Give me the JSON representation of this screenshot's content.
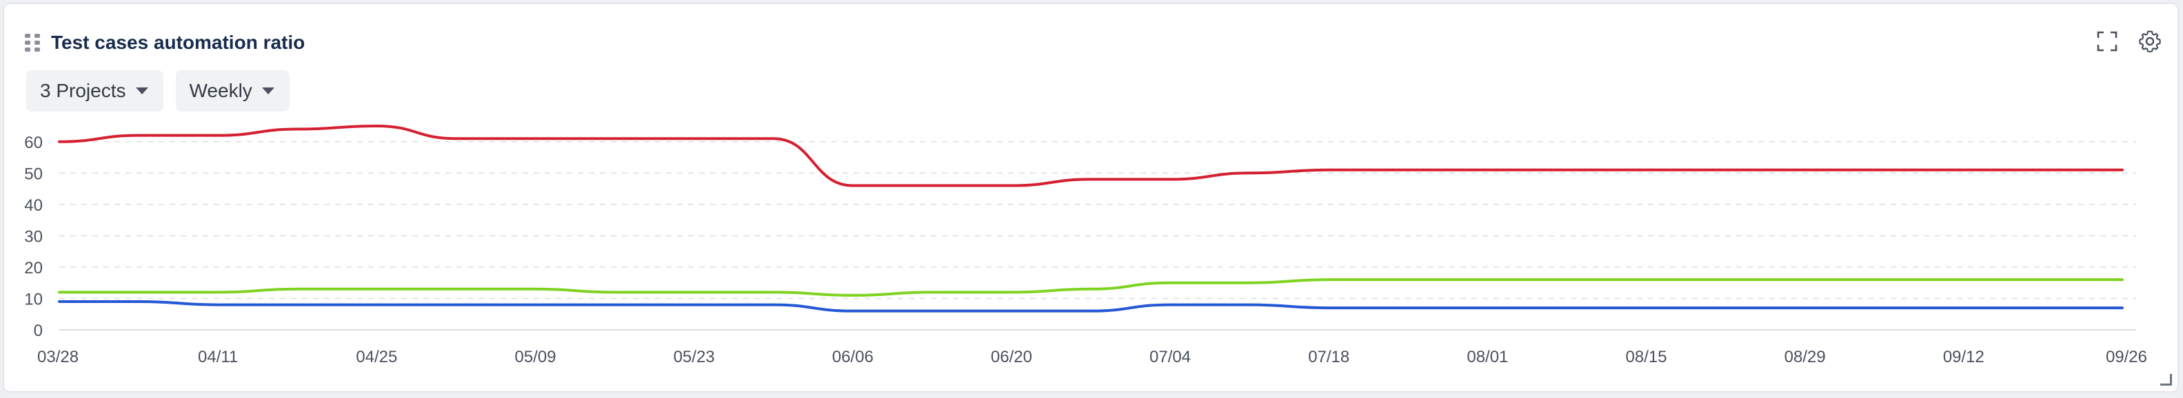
{
  "widget": {
    "title": "Test cases automation ratio",
    "icons": {
      "drag": "drag-handle-icon",
      "fullscreen": "fullscreen-icon",
      "settings": "gear-icon"
    }
  },
  "filters": {
    "projects_label": "3 Projects",
    "period_label": "Weekly"
  },
  "chart_data": {
    "type": "line",
    "title": "Test cases automation ratio",
    "xlabel": "",
    "ylabel": "",
    "ylim": [
      0,
      65
    ],
    "yticks": [
      0,
      10,
      20,
      30,
      40,
      50,
      60
    ],
    "grid": true,
    "x": [
      "03/28",
      "04/04",
      "04/11",
      "04/18",
      "04/25",
      "05/02",
      "05/09",
      "05/16",
      "05/23",
      "05/30",
      "06/06",
      "06/13",
      "06/20",
      "06/27",
      "07/04",
      "07/11",
      "07/18",
      "07/25",
      "08/01",
      "08/08",
      "08/15",
      "08/22",
      "08/29",
      "09/05",
      "09/12",
      "09/19",
      "09/26"
    ],
    "xtick_labels": [
      "03/28",
      "04/11",
      "04/25",
      "05/09",
      "05/23",
      "06/06",
      "06/20",
      "07/04",
      "07/18",
      "08/01",
      "08/15",
      "08/29",
      "09/12",
      "09/26"
    ],
    "series": [
      {
        "color": "#d42030",
        "values": [
          60,
          62,
          62,
          64,
          65,
          61,
          61,
          61,
          61,
          61,
          46,
          46,
          46,
          48,
          48,
          50,
          51,
          51,
          51,
          51,
          51,
          51,
          51,
          51,
          51,
          51,
          51
        ]
      },
      {
        "color": "#7ed321",
        "values": [
          12,
          12,
          12,
          13,
          13,
          13,
          13,
          12,
          12,
          12,
          11,
          12,
          12,
          13,
          15,
          15,
          16,
          16,
          16,
          16,
          16,
          16,
          16,
          16,
          16,
          16,
          16
        ]
      },
      {
        "color": "#2458d4",
        "values": [
          9,
          9,
          8,
          8,
          8,
          8,
          8,
          8,
          8,
          8,
          6,
          6,
          6,
          6,
          8,
          8,
          7,
          7,
          7,
          7,
          7,
          7,
          7,
          7,
          7,
          7,
          7
        ]
      }
    ]
  }
}
